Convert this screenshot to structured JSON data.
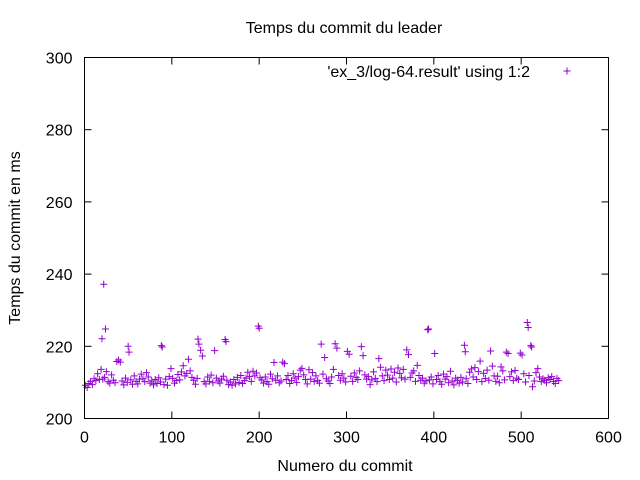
{
  "chart_data": {
    "type": "scatter",
    "title": "Temps du commit du leader",
    "xlabel": "Numero du commit",
    "ylabel": "Temps du commit en ms",
    "xlim": [
      0,
      600
    ],
    "ylim": [
      200,
      300
    ],
    "xticks": [
      "0",
      "100",
      "200",
      "300",
      "400",
      "500",
      "600"
    ],
    "yticks": [
      "200",
      "220",
      "240",
      "260",
      "280",
      "300"
    ],
    "grid": false,
    "legend_position": "top-right",
    "marker": "plus",
    "series": [
      {
        "name": "'ex_3/log-64.result' using 1:2",
        "color": "#9400d3",
        "points": [
          [
            1,
            209.2
          ],
          [
            3,
            208.6
          ],
          [
            5,
            209.7
          ],
          [
            7,
            210.3
          ],
          [
            9,
            209.4
          ],
          [
            11,
            211.0
          ],
          [
            13,
            210.5
          ],
          [
            15,
            212.4
          ],
          [
            17,
            210.8
          ],
          [
            19,
            213.6
          ],
          [
            20,
            222.1
          ],
          [
            21,
            210.9
          ],
          [
            22,
            237.2
          ],
          [
            23,
            211.4
          ],
          [
            24,
            224.8
          ],
          [
            25,
            213.0
          ],
          [
            27,
            210.2
          ],
          [
            29,
            209.8
          ],
          [
            31,
            212.1
          ],
          [
            33,
            210.6
          ],
          [
            35,
            209.9
          ],
          [
            37,
            215.8
          ],
          [
            39,
            216.2
          ],
          [
            41,
            215.6
          ],
          [
            43,
            210.4
          ],
          [
            45,
            209.3
          ],
          [
            47,
            211.2
          ],
          [
            49,
            210.0
          ],
          [
            50,
            220.0
          ],
          [
            51,
            218.4
          ],
          [
            53,
            210.7
          ],
          [
            55,
            209.5
          ],
          [
            57,
            211.8
          ],
          [
            59,
            210.3
          ],
          [
            61,
            209.6
          ],
          [
            63,
            210.9
          ],
          [
            65,
            212.3
          ],
          [
            67,
            211.0
          ],
          [
            69,
            210.2
          ],
          [
            71,
            212.7
          ],
          [
            73,
            211.5
          ],
          [
            75,
            209.8
          ],
          [
            77,
            210.4
          ],
          [
            79,
            209.3
          ],
          [
            81,
            210.8
          ],
          [
            83,
            209.7
          ],
          [
            85,
            211.3
          ],
          [
            87,
            210.1
          ],
          [
            88,
            220.2
          ],
          [
            89,
            219.8
          ],
          [
            91,
            209.4
          ],
          [
            93,
            210.9
          ],
          [
            95,
            209.2
          ],
          [
            97,
            211.6
          ],
          [
            99,
            213.8
          ],
          [
            101,
            211.1
          ],
          [
            103,
            209.8
          ],
          [
            105,
            210.5
          ],
          [
            107,
            212.2
          ],
          [
            109,
            210.7
          ],
          [
            111,
            212.9
          ],
          [
            113,
            214.6
          ],
          [
            115,
            211.8
          ],
          [
            117,
            212.5
          ],
          [
            119,
            216.4
          ],
          [
            121,
            213.2
          ],
          [
            123,
            211.4
          ],
          [
            125,
            210.6
          ],
          [
            127,
            209.5
          ],
          [
            129,
            211.1
          ],
          [
            130,
            222.0
          ],
          [
            131,
            220.6
          ],
          [
            133,
            218.9
          ],
          [
            135,
            217.3
          ],
          [
            137,
            210.2
          ],
          [
            139,
            209.6
          ],
          [
            141,
            211.5
          ],
          [
            143,
            210.3
          ],
          [
            145,
            212.0
          ],
          [
            147,
            209.9
          ],
          [
            149,
            218.8
          ],
          [
            151,
            211.2
          ],
          [
            153,
            210.4
          ],
          [
            155,
            209.8
          ],
          [
            157,
            210.9
          ],
          [
            159,
            211.7
          ],
          [
            161,
            221.9
          ],
          [
            162,
            221.3
          ],
          [
            163,
            210.6
          ],
          [
            165,
            209.4
          ],
          [
            167,
            210.1
          ],
          [
            169,
            209.2
          ],
          [
            171,
            210.8
          ],
          [
            173,
            209.6
          ],
          [
            175,
            211.4
          ],
          [
            177,
            210.0
          ],
          [
            179,
            211.9
          ],
          [
            181,
            209.7
          ],
          [
            183,
            210.5
          ],
          [
            185,
            211.2
          ],
          [
            187,
            212.8
          ],
          [
            189,
            211.6
          ],
          [
            191,
            210.3
          ],
          [
            193,
            213.1
          ],
          [
            195,
            211.8
          ],
          [
            197,
            212.6
          ],
          [
            199,
            225.6
          ],
          [
            200,
            225.0
          ],
          [
            201,
            211.3
          ],
          [
            203,
            210.7
          ],
          [
            205,
            209.8
          ],
          [
            207,
            211.5
          ],
          [
            209,
            210.2
          ],
          [
            211,
            209.5
          ],
          [
            213,
            212.3
          ],
          [
            215,
            211.0
          ],
          [
            217,
            215.5
          ],
          [
            219,
            210.6
          ],
          [
            221,
            211.8
          ],
          [
            223,
            209.9
          ],
          [
            225,
            210.4
          ],
          [
            227,
            215.6
          ],
          [
            229,
            215.2
          ],
          [
            231,
            210.8
          ],
          [
            233,
            211.9
          ],
          [
            235,
            209.7
          ],
          [
            237,
            210.5
          ],
          [
            239,
            212.4
          ],
          [
            241,
            211.2
          ],
          [
            243,
            210.0
          ],
          [
            245,
            211.6
          ],
          [
            247,
            213.4
          ],
          [
            249,
            213.9
          ],
          [
            251,
            212.1
          ],
          [
            253,
            210.8
          ],
          [
            255,
            209.6
          ],
          [
            257,
            213.5
          ],
          [
            259,
            210.9
          ],
          [
            261,
            212.7
          ],
          [
            263,
            210.3
          ],
          [
            265,
            211.8
          ],
          [
            267,
            210.5
          ],
          [
            269,
            209.8
          ],
          [
            271,
            220.6
          ],
          [
            273,
            212.3
          ],
          [
            275,
            216.9
          ],
          [
            277,
            211.0
          ],
          [
            279,
            210.4
          ],
          [
            281,
            209.7
          ],
          [
            283,
            211.5
          ],
          [
            285,
            213.6
          ],
          [
            287,
            220.7
          ],
          [
            289,
            219.5
          ],
          [
            291,
            211.9
          ],
          [
            293,
            210.6
          ],
          [
            295,
            212.4
          ],
          [
            297,
            211.2
          ],
          [
            299,
            210.1
          ],
          [
            301,
            218.6
          ],
          [
            303,
            217.8
          ],
          [
            305,
            211.7
          ],
          [
            307,
            210.3
          ],
          [
            309,
            212.6
          ],
          [
            311,
            211.4
          ],
          [
            313,
            210.8
          ],
          [
            315,
            213.2
          ],
          [
            317,
            219.9
          ],
          [
            319,
            217.4
          ],
          [
            321,
            212.1
          ],
          [
            323,
            210.9
          ],
          [
            325,
            211.6
          ],
          [
            327,
            209.4
          ],
          [
            329,
            210.7
          ],
          [
            331,
            212.9
          ],
          [
            333,
            211.1
          ],
          [
            335,
            210.2
          ],
          [
            337,
            216.6
          ],
          [
            339,
            214.2
          ],
          [
            341,
            211.8
          ],
          [
            343,
            210.5
          ],
          [
            345,
            213.4
          ],
          [
            347,
            212.0
          ],
          [
            349,
            210.8
          ],
          [
            351,
            213.7
          ],
          [
            353,
            211.2
          ],
          [
            355,
            212.8
          ],
          [
            357,
            210.1
          ],
          [
            359,
            214.0
          ],
          [
            361,
            212.5
          ],
          [
            363,
            211.3
          ],
          [
            365,
            213.6
          ],
          [
            367,
            210.9
          ],
          [
            369,
            219.0
          ],
          [
            371,
            217.7
          ],
          [
            373,
            211.4
          ],
          [
            375,
            212.6
          ],
          [
            377,
            213.2
          ],
          [
            379,
            210.3
          ],
          [
            381,
            214.7
          ],
          [
            383,
            211.9
          ],
          [
            385,
            210.6
          ],
          [
            387,
            211.2
          ],
          [
            389,
            209.8
          ],
          [
            391,
            210.4
          ],
          [
            393,
            224.6
          ],
          [
            394,
            224.8
          ],
          [
            395,
            210.7
          ],
          [
            397,
            211.5
          ],
          [
            399,
            209.6
          ],
          [
            401,
            218.0
          ],
          [
            403,
            210.8
          ],
          [
            405,
            211.9
          ],
          [
            407,
            210.2
          ],
          [
            409,
            209.5
          ],
          [
            411,
            212.3
          ],
          [
            413,
            210.9
          ],
          [
            415,
            211.6
          ],
          [
            417,
            209.9
          ],
          [
            419,
            213.1
          ],
          [
            421,
            210.4
          ],
          [
            423,
            209.3
          ],
          [
            425,
            211.2
          ],
          [
            427,
            210.6
          ],
          [
            429,
            209.8
          ],
          [
            431,
            211.4
          ],
          [
            433,
            210.1
          ],
          [
            435,
            220.3
          ],
          [
            436,
            218.5
          ],
          [
            437,
            211.0
          ],
          [
            439,
            209.7
          ],
          [
            441,
            212.8
          ],
          [
            443,
            213.7
          ],
          [
            445,
            211.5
          ],
          [
            447,
            214.1
          ],
          [
            449,
            210.8
          ],
          [
            451,
            213.0
          ],
          [
            453,
            215.9
          ],
          [
            455,
            210.2
          ],
          [
            457,
            212.5
          ],
          [
            459,
            211.1
          ],
          [
            461,
            213.4
          ],
          [
            463,
            210.6
          ],
          [
            465,
            218.7
          ],
          [
            467,
            214.5
          ],
          [
            469,
            211.8
          ],
          [
            471,
            210.3
          ],
          [
            473,
            211.7
          ],
          [
            475,
            209.9
          ],
          [
            477,
            214.3
          ],
          [
            479,
            213.2
          ],
          [
            481,
            210.7
          ],
          [
            483,
            218.4
          ],
          [
            485,
            218.0
          ],
          [
            487,
            211.6
          ],
          [
            489,
            212.9
          ],
          [
            491,
            210.5
          ],
          [
            493,
            213.3
          ],
          [
            495,
            211.2
          ],
          [
            497,
            210.8
          ],
          [
            499,
            218.1
          ],
          [
            501,
            217.6
          ],
          [
            503,
            212.4
          ],
          [
            505,
            210.1
          ],
          [
            507,
            226.6
          ],
          [
            508,
            225.2
          ],
          [
            509,
            211.9
          ],
          [
            511,
            220.2
          ],
          [
            512,
            219.8
          ],
          [
            513,
            208.8
          ],
          [
            515,
            210.4
          ],
          [
            517,
            212.7
          ],
          [
            519,
            213.8
          ],
          [
            521,
            211.5
          ],
          [
            523,
            210.2
          ],
          [
            525,
            211.0
          ],
          [
            527,
            210.6
          ],
          [
            529,
            209.9
          ],
          [
            531,
            211.3
          ],
          [
            533,
            210.8
          ],
          [
            535,
            211.6
          ],
          [
            537,
            210.3
          ],
          [
            539,
            209.7
          ],
          [
            541,
            211.1
          ],
          [
            543,
            210.5
          ]
        ]
      }
    ]
  }
}
